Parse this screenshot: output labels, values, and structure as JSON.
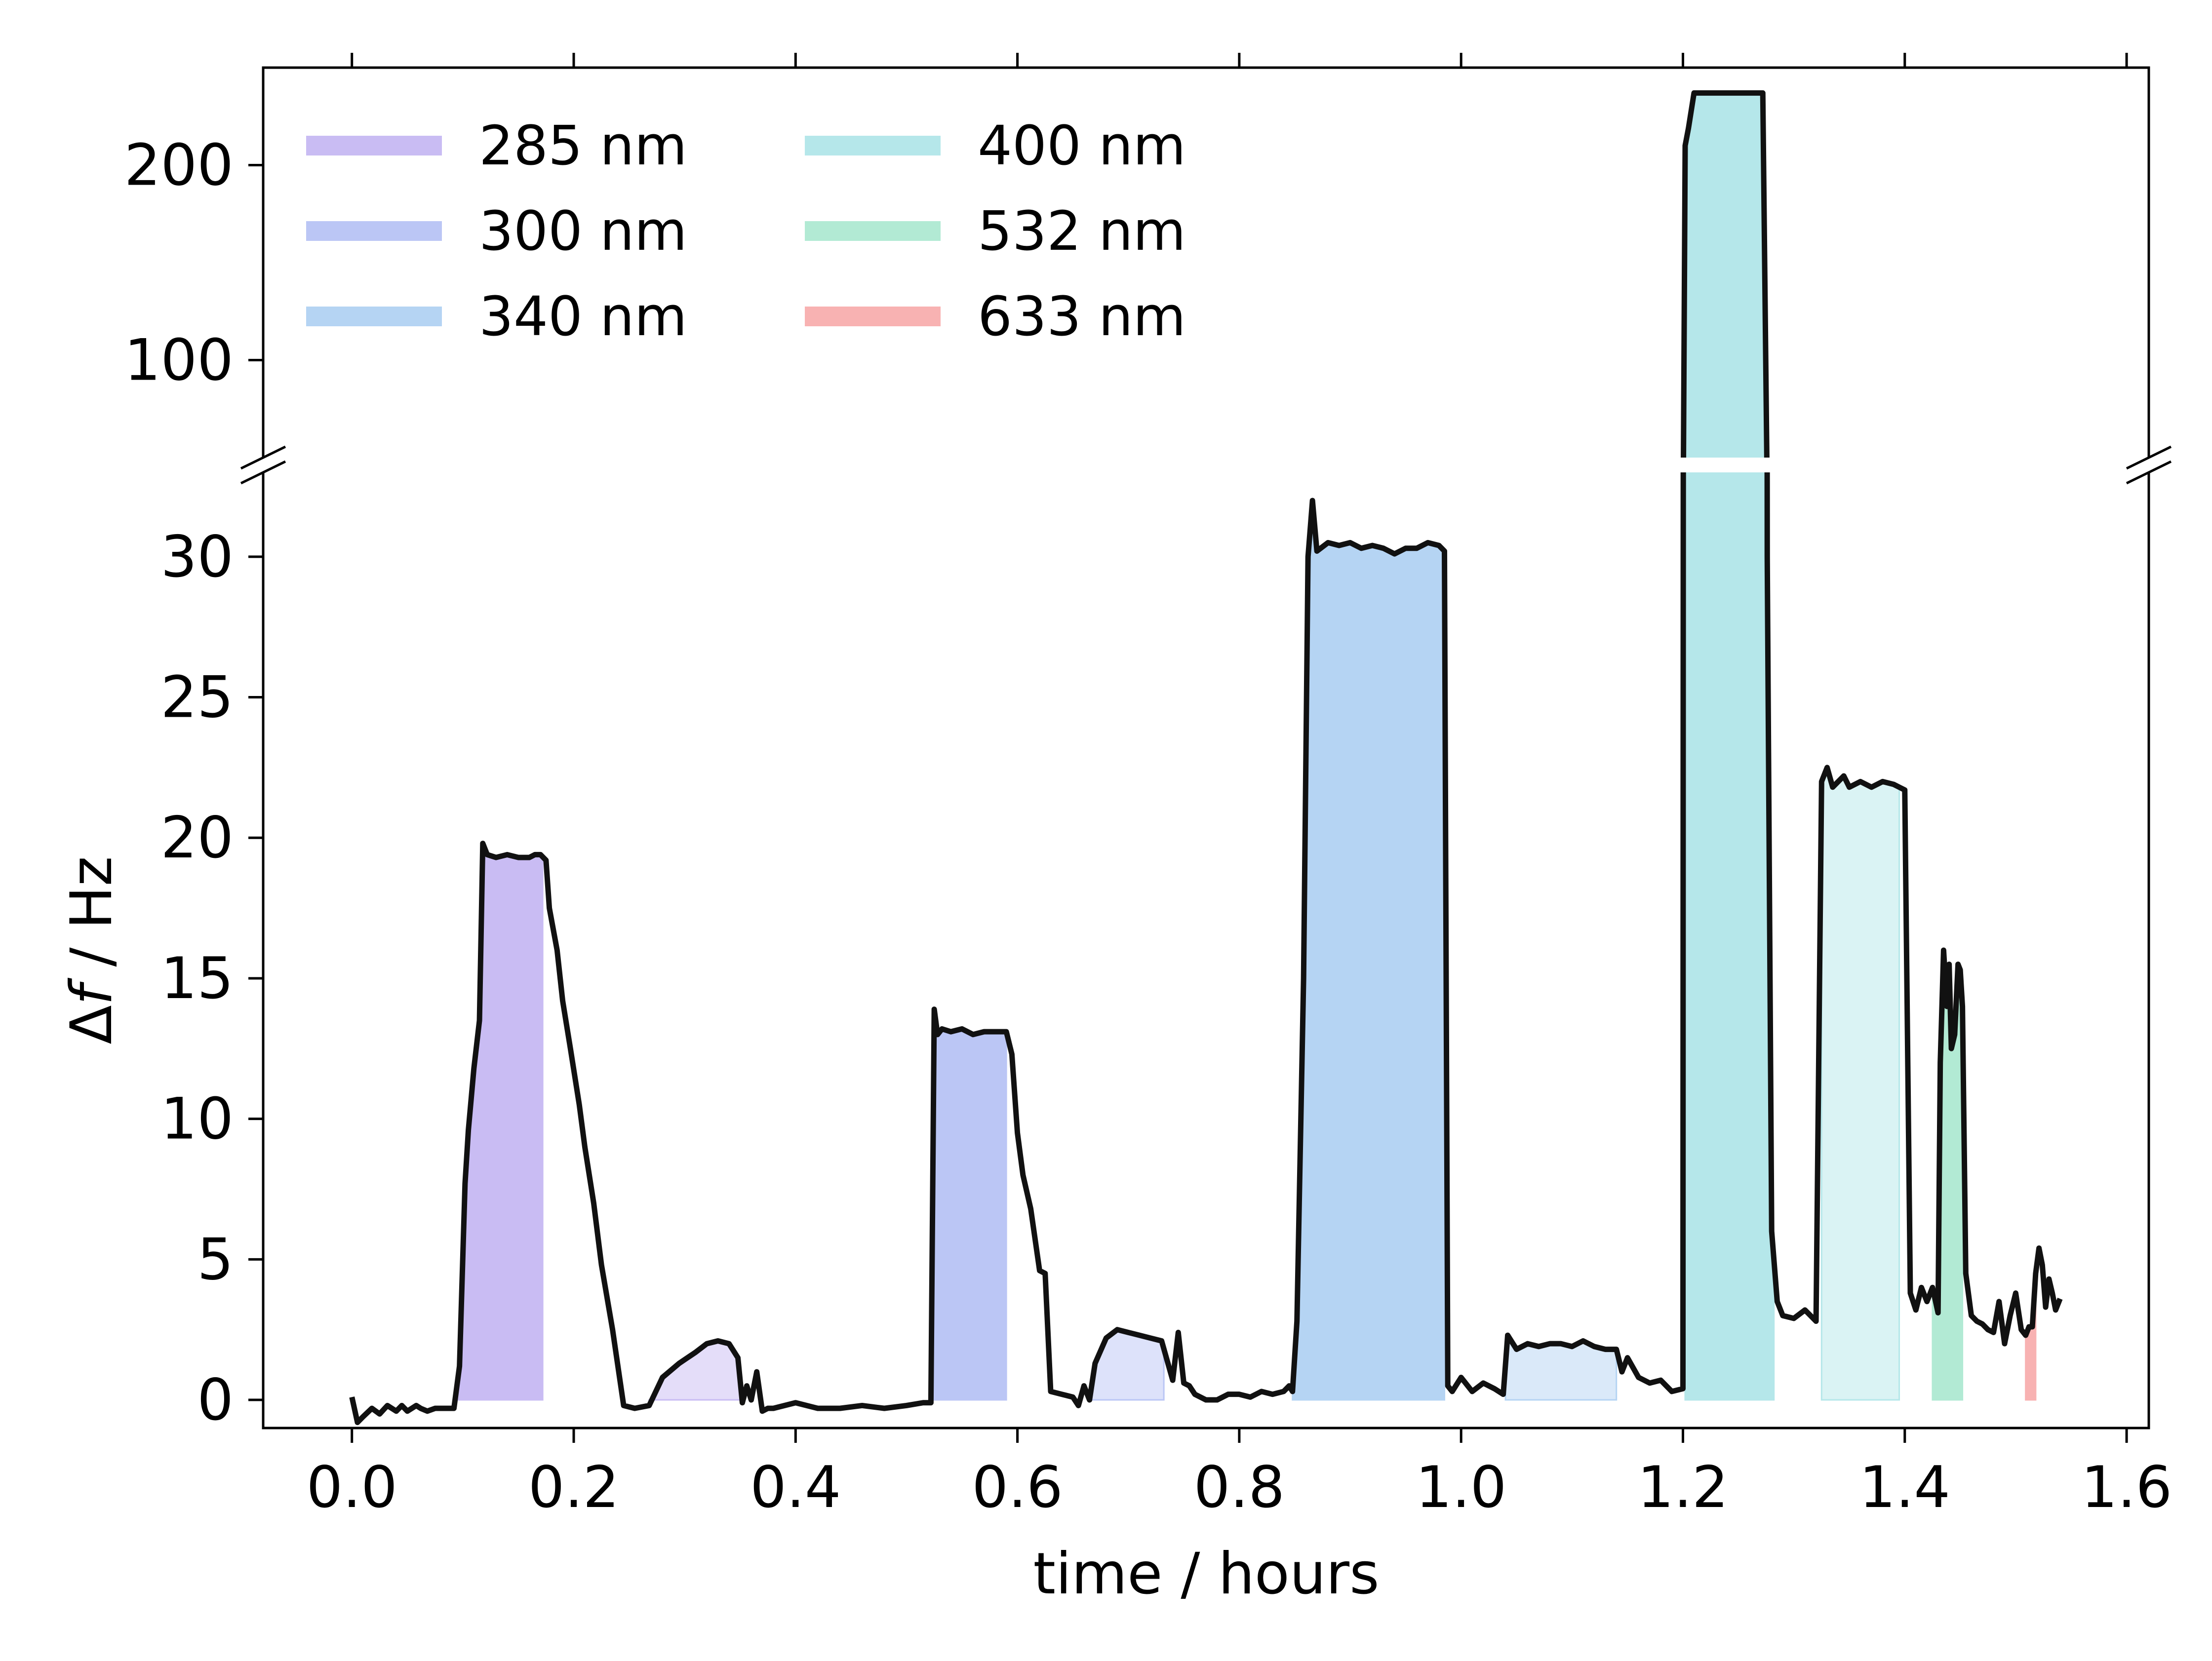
{
  "chart_data": {
    "type": "line",
    "xlabel": "time / hours",
    "ylabel_prefix": "Δ",
    "ylabel_italic": "f",
    "ylabel_suffix": " / Hz",
    "xlim": [
      -0.08,
      1.62
    ],
    "x_ticks": [
      {
        "value": 0.0,
        "label": "0.0"
      },
      {
        "value": 0.2,
        "label": "0.2"
      },
      {
        "value": 0.4,
        "label": "0.4"
      },
      {
        "value": 0.6,
        "label": "0.6"
      },
      {
        "value": 0.8,
        "label": "0.8"
      },
      {
        "value": 1.0,
        "label": "1.0"
      },
      {
        "value": 1.2,
        "label": "1.2"
      },
      {
        "value": 1.4,
        "label": "1.4"
      },
      {
        "value": 1.6,
        "label": "1.6"
      }
    ],
    "upper_panel": {
      "ylim": [
        50,
        250
      ],
      "y_ticks": [
        {
          "value": 100,
          "label": "100"
        },
        {
          "value": 200,
          "label": "200"
        }
      ]
    },
    "lower_panel": {
      "ylim": [
        -1,
        33
      ],
      "y_ticks": [
        {
          "value": 0,
          "label": "0"
        },
        {
          "value": 5,
          "label": "5"
        },
        {
          "value": 10,
          "label": "10"
        },
        {
          "value": 15,
          "label": "15"
        },
        {
          "value": 20,
          "label": "20"
        },
        {
          "value": 25,
          "label": "25"
        },
        {
          "value": 30,
          "label": "30"
        }
      ]
    },
    "legend": {
      "placement": "top-left",
      "columns": 2,
      "entries": [
        {
          "label": "285 nm",
          "color": "#c9bcf3"
        },
        {
          "label": "300 nm",
          "color": "#bbc6f5"
        },
        {
          "label": "340 nm",
          "color": "#b5d4f3"
        },
        {
          "label": "400 nm",
          "color": "#b5e7ea"
        },
        {
          "label": "532 nm",
          "color": "#b2ead4"
        },
        {
          "label": "633 nm",
          "color": "#f8b2b2"
        }
      ]
    },
    "illumination_regions": [
      {
        "wavelength": "285 nm",
        "x_start": 0.092,
        "x_end": 0.172,
        "color": "#c9bcf3",
        "alpha": 1.0
      },
      {
        "wavelength": "285 nm",
        "x_start": 0.268,
        "x_end": 0.352,
        "color": "#c9bcf3",
        "alpha": 0.5
      },
      {
        "wavelength": "300 nm",
        "x_start": 0.525,
        "x_end": 0.59,
        "color": "#bbc6f5",
        "alpha": 1.0
      },
      {
        "wavelength": "300 nm",
        "x_start": 0.665,
        "x_end": 0.732,
        "color": "#bbc6f5",
        "alpha": 0.5
      },
      {
        "wavelength": "340 nm",
        "x_start": 0.848,
        "x_end": 0.985,
        "color": "#b5d4f3",
        "alpha": 1.0
      },
      {
        "wavelength": "340 nm",
        "x_start": 1.04,
        "x_end": 1.14,
        "color": "#b5d4f3",
        "alpha": 0.5
      },
      {
        "wavelength": "400 nm",
        "x_start": 1.202,
        "x_end": 1.282,
        "color": "#b5e7ea",
        "alpha": 1.0
      },
      {
        "wavelength": "400 nm",
        "x_start": 1.325,
        "x_end": 1.395,
        "color": "#b5e7ea",
        "alpha": 0.5
      },
      {
        "wavelength": "532 nm",
        "x_start": 1.425,
        "x_end": 1.452,
        "color": "#b2ead4",
        "alpha": 1.0
      },
      {
        "wavelength": "633 nm",
        "x_start": 1.509,
        "x_end": 1.518,
        "color": "#f8b2b2",
        "alpha": 1.0
      }
    ],
    "series": [
      {
        "color": "#111111",
        "x": [
          0.0,
          0.005,
          0.01,
          0.018,
          0.025,
          0.032,
          0.04,
          0.045,
          0.05,
          0.058,
          0.062,
          0.068,
          0.075,
          0.085,
          0.092,
          0.097,
          0.102,
          0.105,
          0.11,
          0.115,
          0.118,
          0.122,
          0.13,
          0.14,
          0.15,
          0.16,
          0.165,
          0.17,
          0.175,
          0.178,
          0.185,
          0.19,
          0.197,
          0.205,
          0.21,
          0.218,
          0.225,
          0.235,
          0.245,
          0.255,
          0.268,
          0.28,
          0.295,
          0.31,
          0.32,
          0.33,
          0.34,
          0.348,
          0.352,
          0.356,
          0.36,
          0.365,
          0.37,
          0.375,
          0.38,
          0.4,
          0.42,
          0.44,
          0.46,
          0.48,
          0.5,
          0.515,
          0.522,
          0.525,
          0.528,
          0.532,
          0.54,
          0.55,
          0.56,
          0.57,
          0.58,
          0.59,
          0.595,
          0.6,
          0.605,
          0.612,
          0.62,
          0.625,
          0.63,
          0.64,
          0.65,
          0.655,
          0.66,
          0.665,
          0.67,
          0.68,
          0.69,
          0.7,
          0.71,
          0.72,
          0.73,
          0.74,
          0.745,
          0.75,
          0.755,
          0.76,
          0.77,
          0.78,
          0.79,
          0.8,
          0.81,
          0.82,
          0.83,
          0.84,
          0.845,
          0.848,
          0.852,
          0.858,
          0.862,
          0.866,
          0.87,
          0.88,
          0.89,
          0.9,
          0.91,
          0.92,
          0.93,
          0.94,
          0.95,
          0.96,
          0.97,
          0.98,
          0.985,
          0.988,
          0.992,
          1.0,
          1.01,
          1.02,
          1.03,
          1.038,
          1.042,
          1.05,
          1.06,
          1.07,
          1.08,
          1.09,
          1.1,
          1.11,
          1.12,
          1.13,
          1.14,
          1.145,
          1.15,
          1.16,
          1.17,
          1.18,
          1.19,
          1.2,
          1.202,
          1.205,
          1.21,
          1.22,
          1.23,
          1.24,
          1.25,
          1.26,
          1.265,
          1.272,
          1.276,
          1.28,
          1.285,
          1.29,
          1.3,
          1.31,
          1.32,
          1.325,
          1.33,
          1.335,
          1.34,
          1.345,
          1.35,
          1.36,
          1.37,
          1.38,
          1.39,
          1.395,
          1.4,
          1.405,
          1.41,
          1.415,
          1.42,
          1.425,
          1.43,
          1.432,
          1.435,
          1.438,
          1.44,
          1.442,
          1.445,
          1.448,
          1.45,
          1.452,
          1.455,
          1.46,
          1.465,
          1.47,
          1.475,
          1.48,
          1.485,
          1.49,
          1.495,
          1.5,
          1.505,
          1.509,
          1.512,
          1.515,
          1.518,
          1.521,
          1.524,
          1.527,
          1.53,
          1.533,
          1.536,
          1.54
        ],
        "y": [
          0.1,
          -0.8,
          -0.6,
          -0.3,
          -0.5,
          -0.2,
          -0.4,
          -0.2,
          -0.4,
          -0.2,
          -0.3,
          -0.4,
          -0.3,
          -0.3,
          -0.3,
          1.2,
          7.7,
          9.6,
          11.8,
          13.5,
          19.8,
          19.4,
          19.3,
          19.4,
          19.3,
          19.3,
          19.4,
          19.4,
          19.2,
          17.5,
          16.0,
          14.2,
          12.5,
          10.5,
          9.0,
          7.0,
          4.8,
          2.5,
          -0.2,
          -0.3,
          -0.2,
          0.8,
          1.3,
          1.7,
          2.0,
          2.1,
          2.0,
          1.5,
          -0.1,
          0.5,
          0.0,
          1.0,
          -0.4,
          -0.3,
          -0.3,
          -0.1,
          -0.3,
          -0.3,
          -0.2,
          -0.3,
          -0.2,
          -0.1,
          -0.1,
          13.9,
          13.0,
          13.2,
          13.1,
          13.2,
          13.0,
          13.1,
          13.1,
          13.1,
          12.3,
          9.5,
          8.0,
          6.8,
          4.6,
          4.5,
          0.3,
          0.2,
          0.1,
          -0.2,
          0.5,
          0.0,
          1.3,
          2.2,
          2.5,
          2.4,
          2.3,
          2.2,
          2.1,
          0.7,
          2.4,
          0.6,
          0.5,
          0.2,
          0.0,
          0.0,
          0.2,
          0.2,
          0.1,
          0.3,
          0.2,
          0.3,
          0.5,
          0.3,
          2.8,
          15.0,
          30.0,
          32.0,
          30.2,
          30.5,
          30.4,
          30.5,
          30.3,
          30.4,
          30.3,
          30.1,
          30.3,
          30.3,
          30.5,
          30.4,
          30.2,
          0.5,
          0.3,
          0.8,
          0.3,
          0.6,
          0.4,
          0.2,
          2.3,
          1.8,
          2.0,
          1.9,
          2.0,
          2.0,
          1.9,
          2.1,
          1.9,
          1.8,
          1.8,
          1.0,
          1.5,
          0.8,
          0.6,
          0.7,
          0.3,
          0.4,
          210,
          219,
          237,
          237,
          237,
          237,
          237,
          237,
          237,
          237,
          30,
          6,
          3.5,
          3.0,
          2.9,
          3.2,
          2.8,
          22.0,
          22.5,
          21.8,
          22.0,
          22.2,
          21.8,
          22.0,
          21.8,
          22.0,
          21.9,
          21.8,
          21.7,
          3.8,
          3.2,
          4.0,
          3.5,
          4.0,
          3.1,
          12.0,
          16.0,
          14.0,
          15.5,
          12.5,
          13.0,
          15.5,
          15.3,
          14.0,
          4.5,
          3.0,
          2.8,
          2.7,
          2.5,
          2.4,
          3.5,
          2.0,
          3.0,
          3.8,
          2.5,
          2.3,
          2.6,
          2.6,
          4.5,
          5.4,
          4.8,
          3.3,
          4.3,
          3.8,
          3.2,
          3.6
        ]
      }
    ]
  }
}
